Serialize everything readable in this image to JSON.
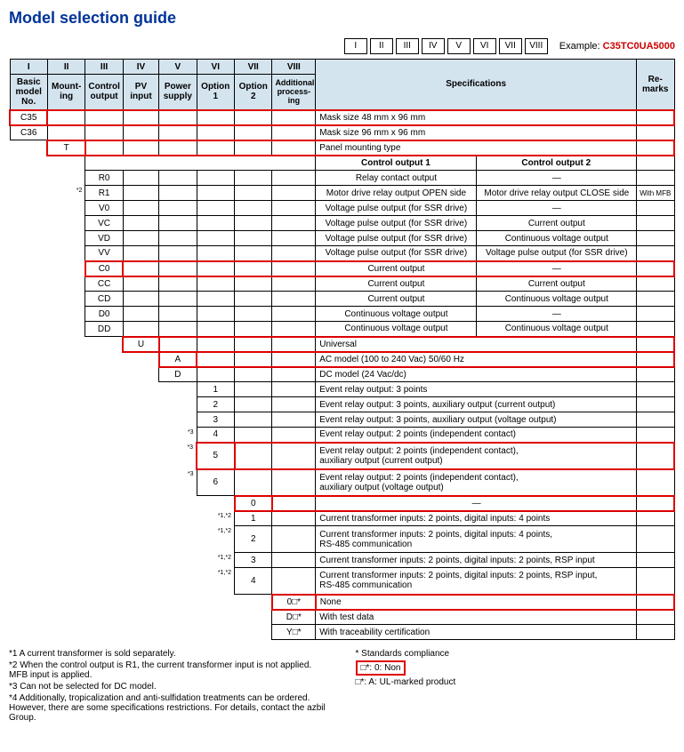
{
  "title": "Model selection guide",
  "top_roman": [
    "I",
    "II",
    "III",
    "IV",
    "V",
    "VI",
    "VII",
    "VIII"
  ],
  "example_label": "Example:",
  "example_code": "C35TC0UA5000",
  "headers": {
    "romans": [
      "I",
      "II",
      "III",
      "IV",
      "V",
      "VI",
      "VII",
      "VIII"
    ],
    "labels": [
      "Basic model No.",
      "Mount-ing",
      "Control output",
      "PV input",
      "Power supply",
      "Option 1",
      "Option 2",
      "Additional process-ing"
    ],
    "specs": "Specifications",
    "remarks": "Re-marks"
  },
  "rows": [
    {
      "col0": "C35",
      "spec": "Mask size 48 mm x 96 mm",
      "hl": [
        0,
        "row"
      ]
    },
    {
      "col0": "C36",
      "spec": "Mask size 96 mm x 96 mm"
    },
    {
      "col1": "T",
      "spec": "Panel mounting type",
      "hl": [
        1,
        "row"
      ]
    },
    {
      "subhead": true,
      "s1": "Control output 1",
      "s2": "Control output 2"
    },
    {
      "col2": "R0",
      "s1": "Relay contact output",
      "s2": "—"
    },
    {
      "col2": "R1",
      "s1": "Motor drive relay output OPEN side",
      "s2": "Motor drive relay output CLOSE side",
      "rem": "With MFB",
      "fn": "*2"
    },
    {
      "col2": "V0",
      "s1": "Voltage pulse output (for SSR drive)",
      "s2": "—"
    },
    {
      "col2": "VC",
      "s1": "Voltage pulse output (for SSR drive)",
      "s2": "Current output"
    },
    {
      "col2": "VD",
      "s1": "Voltage pulse output (for SSR drive)",
      "s2": "Continuous voltage output"
    },
    {
      "col2": "VV",
      "s1": "Voltage pulse output (for SSR drive)",
      "s2": "Voltage pulse output (for SSR drive)"
    },
    {
      "col2": "C0",
      "s1": "Current output",
      "s2": "—",
      "hl": [
        2,
        "row"
      ]
    },
    {
      "col2": "CC",
      "s1": "Current output",
      "s2": "Current output"
    },
    {
      "col2": "CD",
      "s1": "Current output",
      "s2": "Continuous voltage output"
    },
    {
      "col2": "D0",
      "s1": "Continuous voltage output",
      "s2": "—"
    },
    {
      "col2": "DD",
      "s1": "Continuous voltage output",
      "s2": "Continuous voltage output"
    },
    {
      "col3": "U",
      "spec": "Universal",
      "hl": [
        3,
        "row"
      ]
    },
    {
      "col4": "A",
      "spec": "AC model (100 to 240 Vac) 50/60 Hz",
      "hl": [
        4,
        "row"
      ]
    },
    {
      "col4": "D",
      "spec": "DC model (24 Vac/dc)"
    },
    {
      "col5": "1",
      "spec": "Event relay output: 3 points"
    },
    {
      "col5": "2",
      "spec": "Event relay output: 3 points, auxiliary output (current output)"
    },
    {
      "col5": "3",
      "spec": "Event relay output: 3 points, auxiliary output (voltage output)"
    },
    {
      "col5": "4",
      "spec": "Event relay output: 2 points (independent contact)",
      "fn": "*3"
    },
    {
      "col5": "5",
      "spec": "Event relay output: 2 points (independent contact),\nauxiliary output (current output)",
      "hl": [
        5,
        "row"
      ],
      "fn": "*3"
    },
    {
      "col5": "6",
      "spec": "Event relay output: 2 points (independent contact),\nauxiliary output (voltage output)",
      "fn": "*3"
    },
    {
      "col6": "0",
      "spec": "—",
      "hl": [
        6,
        "row"
      ]
    },
    {
      "col6": "1",
      "spec": "Current transformer inputs: 2 points, digital inputs: 4 points",
      "fn": "*1,*2"
    },
    {
      "col6": "2",
      "spec": "Current transformer inputs: 2 points, digital inputs: 4 points,\nRS-485 communication",
      "fn": "*1,*2"
    },
    {
      "col6": "3",
      "spec": "Current transformer inputs: 2 points, digital inputs: 2 points, RSP input",
      "fn": "*1,*2"
    },
    {
      "col6": "4",
      "spec": "Current transformer inputs: 2 points, digital inputs: 2 points, RSP input,\nRS-485 communication",
      "fn": "*1,*2"
    },
    {
      "col7": "0□*",
      "spec": "None",
      "hl": [
        7,
        "row"
      ]
    },
    {
      "col7": "D□*",
      "spec": "With test data"
    },
    {
      "col7": "Y□*",
      "spec": "With traceability certification"
    }
  ],
  "footnotes_left": [
    "*1  A current transformer is sold separately.",
    "*2  When the control output is R1, the current transformer input is not applied. MFB input is applied.",
    "*3  Can not be selected for DC model.",
    "*4  Additionally, tropicalization and anti-sulfidation treatments can be ordered. However, there are some specifications restrictions. For details, contact the azbil Group."
  ],
  "footnotes_right": {
    "head": "* Standards compliance",
    "l1": "□*: 0: Non",
    "l2": "□*: A: UL-marked product"
  }
}
